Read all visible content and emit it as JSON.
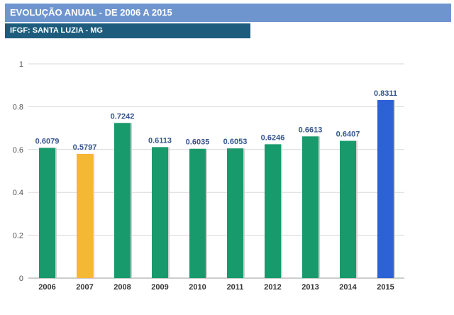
{
  "header": {
    "title": "EVOLUÇÃO ANUAL - DE 2006 A 2015",
    "subtitle": "IFGF: SANTA LUZIA - MG"
  },
  "chart_data": {
    "type": "bar",
    "categories": [
      "2006",
      "2007",
      "2008",
      "2009",
      "2010",
      "2011",
      "2012",
      "2013",
      "2014",
      "2015"
    ],
    "values": [
      0.6079,
      0.5797,
      0.7242,
      0.6113,
      0.6035,
      0.6053,
      0.6246,
      0.6613,
      0.6407,
      0.8311
    ],
    "data_labels": [
      "0.6079",
      "0.5797",
      "0.7242",
      "0.6113",
      "0.6035",
      "0.6053",
      "0.6246",
      "0.6613",
      "0.6407",
      "0.8311"
    ],
    "bar_colors": [
      "#189a6d",
      "#f4b834",
      "#189a6d",
      "#189a6d",
      "#189a6d",
      "#189a6d",
      "#189a6d",
      "#189a6d",
      "#189a6d",
      "#2c62d6"
    ],
    "label_color": "#35568f",
    "yticks": [
      0,
      0.2,
      0.4,
      0.6,
      0.8,
      1
    ],
    "ytick_labels": [
      "0",
      "0.2",
      "0.4",
      "0.6",
      "0.8",
      "1"
    ],
    "ylim": [
      0,
      1
    ],
    "grid": true,
    "xlabel": "",
    "ylabel": ""
  }
}
